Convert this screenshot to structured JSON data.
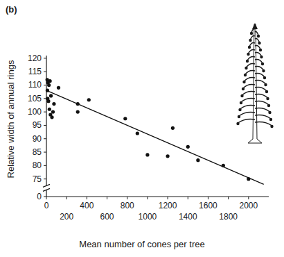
{
  "chart_data": {
    "type": "scatter",
    "title": "(b)",
    "x_label": "Mean number of cones per tree",
    "y_label": "Relative width of annual rings",
    "xlim": [
      0,
      2200
    ],
    "ylim": [
      0,
      121
    ],
    "xticks": [
      0,
      200,
      400,
      600,
      800,
      1000,
      1200,
      1400,
      1600,
      1800,
      2000
    ],
    "yticks": [
      0,
      75,
      80,
      85,
      90,
      95,
      100,
      105,
      110,
      115,
      120
    ],
    "grid": false,
    "series": [
      {
        "type": "scatter",
        "marker": "circle",
        "color": "#111111",
        "x": [
          8,
          15,
          25,
          35,
          10,
          45,
          12,
          20,
          30,
          40,
          55,
          65,
          75,
          120,
          310,
          310,
          420,
          780,
          900,
          1000,
          1200,
          1250,
          1400,
          1500,
          1750,
          2000
        ],
        "values": [
          112,
          111,
          110,
          111.5,
          108,
          106,
          105,
          104,
          101,
          99,
          98,
          100,
          103,
          109,
          103,
          100,
          104.5,
          97.5,
          92,
          84,
          83.5,
          94,
          87,
          82,
          80,
          75
        ]
      },
      {
        "type": "line",
        "line_style": "solid",
        "color": "#111111",
        "x": [
          0,
          2150
        ],
        "values": [
          108,
          73
        ]
      }
    ]
  }
}
